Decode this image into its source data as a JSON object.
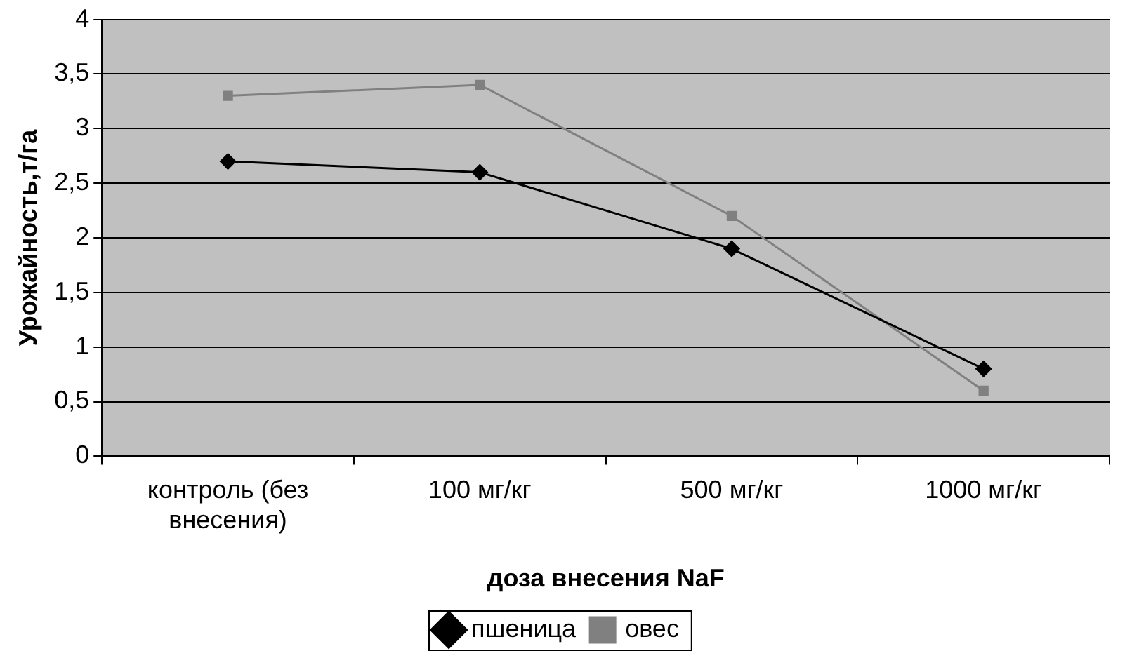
{
  "chart_data": {
    "type": "line",
    "xlabel": "доза внесения NaF",
    "ylabel": "Урожайность,т/га",
    "categories": [
      [
        "контроль (без",
        "внесения)"
      ],
      "100 мг/кг",
      "500 мг/кг",
      "1000 мг/кг"
    ],
    "series": [
      {
        "name": "пшеница",
        "color": "#000000",
        "marker": "diamond",
        "values": [
          2.7,
          2.6,
          1.9,
          0.8
        ]
      },
      {
        "name": "овес",
        "color": "#808080",
        "marker": "square",
        "values": [
          3.3,
          3.4,
          2.2,
          0.6
        ]
      }
    ],
    "ylim": [
      0,
      4
    ],
    "yticks": [
      0,
      {
        "value": 0.5,
        "label": "0,5"
      },
      1,
      {
        "value": 1.5,
        "label": "1,5"
      },
      2,
      {
        "value": 2.5,
        "label": "2,5"
      },
      3,
      {
        "value": 3.5,
        "label": "3,5"
      },
      4
    ],
    "grid": "y",
    "legend": "bottom",
    "line_style": "solid"
  }
}
